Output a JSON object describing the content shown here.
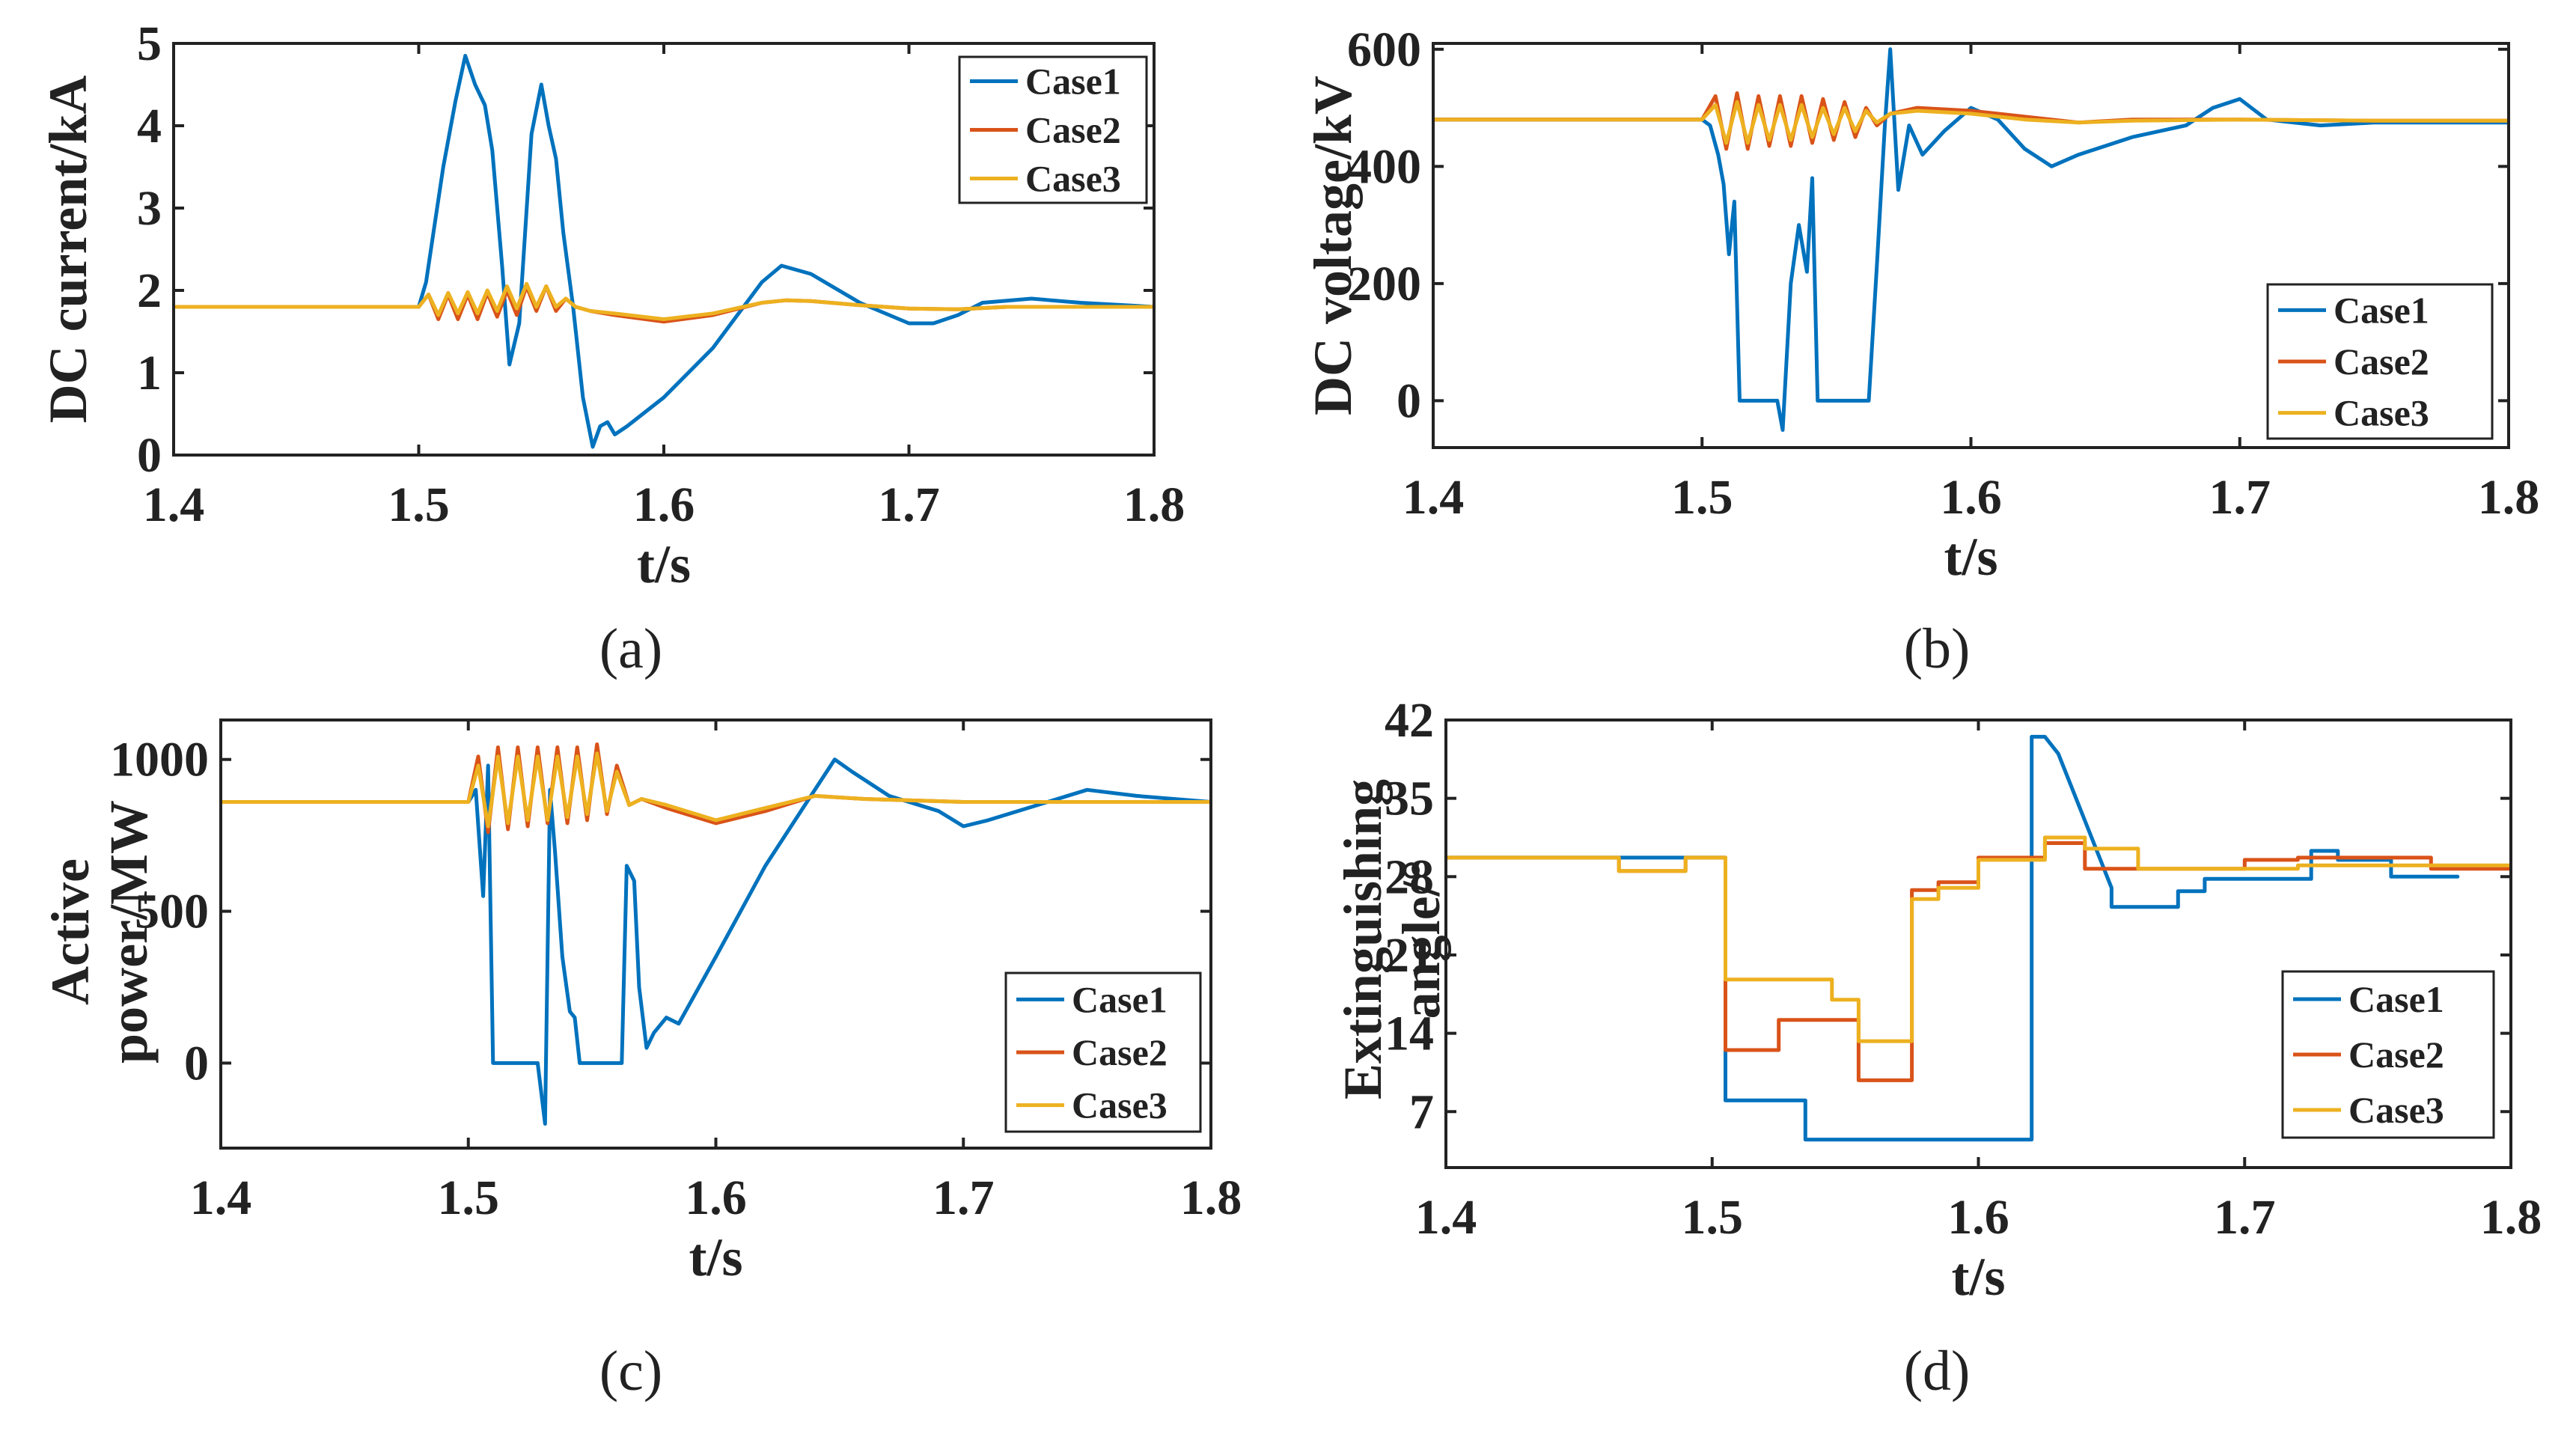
{
  "colors": {
    "case1": "#0072BD",
    "case2": "#D95319",
    "case3": "#EDB120"
  },
  "chart_data": [
    {
      "panel": "a",
      "caption": "(a)",
      "type": "line",
      "xlabel": "t/s",
      "ylabel": "DC current/kA",
      "xlim": [
        1.4,
        1.8
      ],
      "ylim": [
        0,
        5
      ],
      "xticks": [
        1.4,
        1.5,
        1.6,
        1.7,
        1.8
      ],
      "yticks": [
        0,
        1,
        2,
        3,
        4,
        5
      ],
      "legend": "top-right",
      "series": [
        {
          "name": "Case1",
          "color": "#0072BD",
          "x": [
            1.4,
            1.5,
            1.503,
            1.507,
            1.51,
            1.515,
            1.519,
            1.523,
            1.527,
            1.53,
            1.534,
            1.537,
            1.541,
            1.546,
            1.55,
            1.553,
            1.556,
            1.559,
            1.563,
            1.567,
            1.571,
            1.574,
            1.577,
            1.58,
            1.585,
            1.6,
            1.62,
            1.64,
            1.648,
            1.66,
            1.68,
            1.7,
            1.71,
            1.72,
            1.73,
            1.75,
            1.77,
            1.8
          ],
          "y": [
            1.8,
            1.8,
            2.1,
            2.9,
            3.5,
            4.3,
            4.85,
            4.5,
            4.25,
            3.7,
            2.3,
            1.1,
            1.6,
            3.9,
            4.5,
            4.0,
            3.6,
            2.7,
            1.8,
            0.7,
            0.1,
            0.35,
            0.4,
            0.25,
            0.35,
            0.7,
            1.3,
            2.1,
            2.3,
            2.2,
            1.85,
            1.6,
            1.6,
            1.7,
            1.85,
            1.9,
            1.85,
            1.8
          ]
        },
        {
          "name": "Case2",
          "color": "#D95319",
          "x": [
            1.4,
            1.5,
            1.504,
            1.508,
            1.512,
            1.516,
            1.52,
            1.524,
            1.528,
            1.532,
            1.536,
            1.54,
            1.544,
            1.548,
            1.552,
            1.556,
            1.56,
            1.564,
            1.57,
            1.58,
            1.6,
            1.62,
            1.64,
            1.65,
            1.66,
            1.68,
            1.7,
            1.72,
            1.74,
            1.8
          ],
          "y": [
            1.8,
            1.8,
            1.95,
            1.65,
            1.95,
            1.65,
            1.95,
            1.65,
            1.97,
            1.68,
            2.0,
            1.7,
            2.05,
            1.75,
            2.05,
            1.75,
            1.9,
            1.8,
            1.75,
            1.7,
            1.62,
            1.7,
            1.85,
            1.88,
            1.87,
            1.82,
            1.78,
            1.77,
            1.8,
            1.8
          ]
        },
        {
          "name": "Case3",
          "color": "#EDB120",
          "x": [
            1.4,
            1.5,
            1.504,
            1.508,
            1.512,
            1.516,
            1.52,
            1.524,
            1.528,
            1.532,
            1.536,
            1.54,
            1.544,
            1.548,
            1.552,
            1.556,
            1.56,
            1.564,
            1.57,
            1.58,
            1.6,
            1.62,
            1.64,
            1.65,
            1.66,
            1.68,
            1.7,
            1.72,
            1.74,
            1.8
          ],
          "y": [
            1.8,
            1.8,
            1.95,
            1.7,
            1.97,
            1.72,
            1.98,
            1.72,
            2.0,
            1.75,
            2.05,
            1.78,
            2.08,
            1.8,
            2.05,
            1.8,
            1.9,
            1.8,
            1.75,
            1.72,
            1.65,
            1.72,
            1.85,
            1.88,
            1.87,
            1.82,
            1.78,
            1.77,
            1.8,
            1.8
          ]
        }
      ]
    },
    {
      "panel": "b",
      "caption": "(b)",
      "type": "line",
      "xlabel": "t/s",
      "ylabel": "DC voltage/kV",
      "xlim": [
        1.4,
        1.8
      ],
      "ylim": [
        -80,
        610
      ],
      "xticks": [
        1.4,
        1.5,
        1.6,
        1.7,
        1.8
      ],
      "yticks": [
        0,
        200,
        400,
        600
      ],
      "legend": "bottom-right",
      "series": [
        {
          "name": "Case1",
          "color": "#0072BD",
          "x": [
            1.4,
            1.5,
            1.503,
            1.506,
            1.508,
            1.51,
            1.512,
            1.514,
            1.517,
            1.52,
            1.523,
            1.526,
            1.528,
            1.53,
            1.533,
            1.536,
            1.539,
            1.541,
            1.543,
            1.545,
            1.548,
            1.552,
            1.557,
            1.562,
            1.565,
            1.568,
            1.57,
            1.573,
            1.577,
            1.582,
            1.59,
            1.6,
            1.61,
            1.62,
            1.63,
            1.64,
            1.66,
            1.68,
            1.69,
            1.7,
            1.71,
            1.73,
            1.75,
            1.8
          ],
          "y": [
            480,
            480,
            470,
            420,
            370,
            250,
            340,
            0,
            0,
            0,
            0,
            0,
            0,
            -50,
            200,
            300,
            220,
            380,
            0,
            0,
            0,
            0,
            0,
            0,
            230,
            470,
            600,
            360,
            470,
            420,
            460,
            500,
            480,
            430,
            400,
            420,
            450,
            470,
            500,
            515,
            480,
            470,
            475,
            475
          ]
        },
        {
          "name": "Case2",
          "color": "#D95319",
          "x": [
            1.4,
            1.5,
            1.505,
            1.509,
            1.513,
            1.517,
            1.521,
            1.525,
            1.529,
            1.533,
            1.537,
            1.541,
            1.545,
            1.549,
            1.553,
            1.557,
            1.561,
            1.565,
            1.57,
            1.58,
            1.6,
            1.62,
            1.64,
            1.66,
            1.7,
            1.75,
            1.8
          ],
          "y": [
            480,
            480,
            520,
            430,
            525,
            430,
            520,
            435,
            520,
            435,
            520,
            440,
            515,
            445,
            510,
            450,
            500,
            470,
            490,
            500,
            495,
            485,
            475,
            480,
            480,
            478,
            478
          ]
        },
        {
          "name": "Case3",
          "color": "#EDB120",
          "x": [
            1.4,
            1.5,
            1.505,
            1.509,
            1.513,
            1.517,
            1.521,
            1.525,
            1.529,
            1.533,
            1.537,
            1.541,
            1.545,
            1.549,
            1.553,
            1.557,
            1.561,
            1.565,
            1.57,
            1.58,
            1.6,
            1.62,
            1.64,
            1.66,
            1.7,
            1.75,
            1.8
          ],
          "y": [
            480,
            480,
            505,
            440,
            510,
            440,
            505,
            445,
            505,
            445,
            505,
            450,
            500,
            455,
            500,
            460,
            495,
            475,
            490,
            495,
            490,
            480,
            475,
            478,
            480,
            478,
            478
          ]
        }
      ]
    },
    {
      "panel": "c",
      "caption": "(c)",
      "type": "line",
      "xlabel": "t/s",
      "ylabel": "Active power/MW",
      "xlim": [
        1.4,
        1.8
      ],
      "ylim": [
        -280,
        1130
      ],
      "xticks": [
        1.4,
        1.5,
        1.6,
        1.7,
        1.8
      ],
      "yticks": [
        0,
        500,
        1000
      ],
      "legend": "bottom-right",
      "series": [
        {
          "name": "Case1",
          "color": "#0072BD",
          "x": [
            1.4,
            1.5,
            1.503,
            1.506,
            1.508,
            1.51,
            1.513,
            1.516,
            1.52,
            1.524,
            1.528,
            1.531,
            1.533,
            1.535,
            1.538,
            1.541,
            1.543,
            1.545,
            1.548,
            1.552,
            1.558,
            1.562,
            1.564,
            1.567,
            1.569,
            1.572,
            1.575,
            1.58,
            1.585,
            1.6,
            1.62,
            1.64,
            1.648,
            1.655,
            1.67,
            1.69,
            1.7,
            1.71,
            1.73,
            1.75,
            1.77,
            1.8
          ],
          "y": [
            860,
            860,
            900,
            550,
            980,
            0,
            0,
            0,
            0,
            0,
            0,
            -200,
            900,
            700,
            350,
            170,
            150,
            0,
            0,
            0,
            0,
            0,
            650,
            600,
            250,
            50,
            100,
            150,
            130,
            350,
            650,
            900,
            1000,
            960,
            880,
            830,
            780,
            800,
            850,
            900,
            880,
            860
          ]
        },
        {
          "name": "Case2",
          "color": "#D95319",
          "x": [
            1.4,
            1.5,
            1.504,
            1.508,
            1.512,
            1.516,
            1.52,
            1.524,
            1.528,
            1.532,
            1.536,
            1.54,
            1.544,
            1.548,
            1.552,
            1.556,
            1.56,
            1.565,
            1.57,
            1.58,
            1.6,
            1.62,
            1.64,
            1.66,
            1.7,
            1.75,
            1.8
          ],
          "y": [
            860,
            860,
            1010,
            760,
            1040,
            770,
            1040,
            780,
            1040,
            790,
            1040,
            790,
            1040,
            800,
            1050,
            820,
            980,
            850,
            870,
            840,
            790,
            830,
            880,
            870,
            860,
            860,
            860
          ]
        },
        {
          "name": "Case3",
          "color": "#EDB120",
          "x": [
            1.4,
            1.5,
            1.504,
            1.508,
            1.512,
            1.516,
            1.52,
            1.524,
            1.528,
            1.532,
            1.536,
            1.54,
            1.544,
            1.548,
            1.552,
            1.556,
            1.56,
            1.565,
            1.57,
            1.58,
            1.6,
            1.62,
            1.64,
            1.66,
            1.7,
            1.75,
            1.8
          ],
          "y": [
            860,
            860,
            980,
            780,
            1010,
            790,
            1010,
            800,
            1010,
            800,
            1010,
            810,
            1010,
            820,
            1020,
            830,
            960,
            850,
            870,
            850,
            800,
            840,
            880,
            870,
            860,
            860,
            860
          ]
        }
      ]
    },
    {
      "panel": "d",
      "caption": "(d)",
      "type": "line",
      "xlabel": "t/s",
      "ylabel": "Extinguishing angle/°",
      "xlim": [
        1.4,
        1.8
      ],
      "ylim": [
        2,
        42
      ],
      "xticks": [
        1.4,
        1.5,
        1.6,
        1.7,
        1.8
      ],
      "yticks": [
        7,
        14,
        21,
        28,
        35,
        42
      ],
      "legend": "bottom-right",
      "series": [
        {
          "name": "Case1",
          "color": "#0072BD",
          "x": [
            1.4,
            1.505,
            1.505,
            1.535,
            1.535,
            1.62,
            1.62,
            1.625,
            1.63,
            1.635,
            1.64,
            1.645,
            1.65,
            1.65,
            1.675,
            1.675,
            1.685,
            1.685,
            1.725,
            1.725,
            1.735,
            1.735,
            1.755,
            1.755,
            1.78
          ],
          "y": [
            29.7,
            29.7,
            8,
            8,
            4.5,
            4.5,
            40.5,
            40.5,
            39,
            36,
            33,
            30,
            27,
            25.3,
            25.3,
            26.7,
            26.7,
            27.8,
            27.8,
            30.3,
            30.3,
            29.5,
            29.5,
            28,
            28
          ]
        },
        {
          "name": "Case2",
          "color": "#D95319",
          "x": [
            1.4,
            1.465,
            1.465,
            1.49,
            1.49,
            1.505,
            1.505,
            1.525,
            1.525,
            1.555,
            1.555,
            1.575,
            1.575,
            1.585,
            1.585,
            1.6,
            1.6,
            1.625,
            1.625,
            1.64,
            1.64,
            1.7,
            1.7,
            1.72,
            1.72,
            1.77,
            1.77,
            1.8
          ],
          "y": [
            29.7,
            29.7,
            28.5,
            28.5,
            29.7,
            29.7,
            12.5,
            12.5,
            15.2,
            15.2,
            9.8,
            9.8,
            26.8,
            26.8,
            27.5,
            27.5,
            29.7,
            29.7,
            31,
            31,
            28.7,
            28.7,
            29.5,
            29.5,
            29.7,
            29.7,
            28.7,
            28.7
          ]
        },
        {
          "name": "Case3",
          "color": "#EDB120",
          "x": [
            1.4,
            1.465,
            1.465,
            1.49,
            1.49,
            1.505,
            1.505,
            1.545,
            1.545,
            1.555,
            1.555,
            1.575,
            1.575,
            1.585,
            1.585,
            1.6,
            1.6,
            1.625,
            1.625,
            1.64,
            1.64,
            1.66,
            1.66,
            1.7,
            1.7,
            1.72,
            1.72,
            1.8
          ],
          "y": [
            29.7,
            29.7,
            28.5,
            28.5,
            29.7,
            29.7,
            18.8,
            18.8,
            17,
            17,
            13.3,
            13.3,
            26,
            26,
            27,
            27,
            29.5,
            29.5,
            31.5,
            31.5,
            30.5,
            30.5,
            28.7,
            28.7,
            28.7,
            28.7,
            29,
            29
          ]
        }
      ]
    }
  ]
}
